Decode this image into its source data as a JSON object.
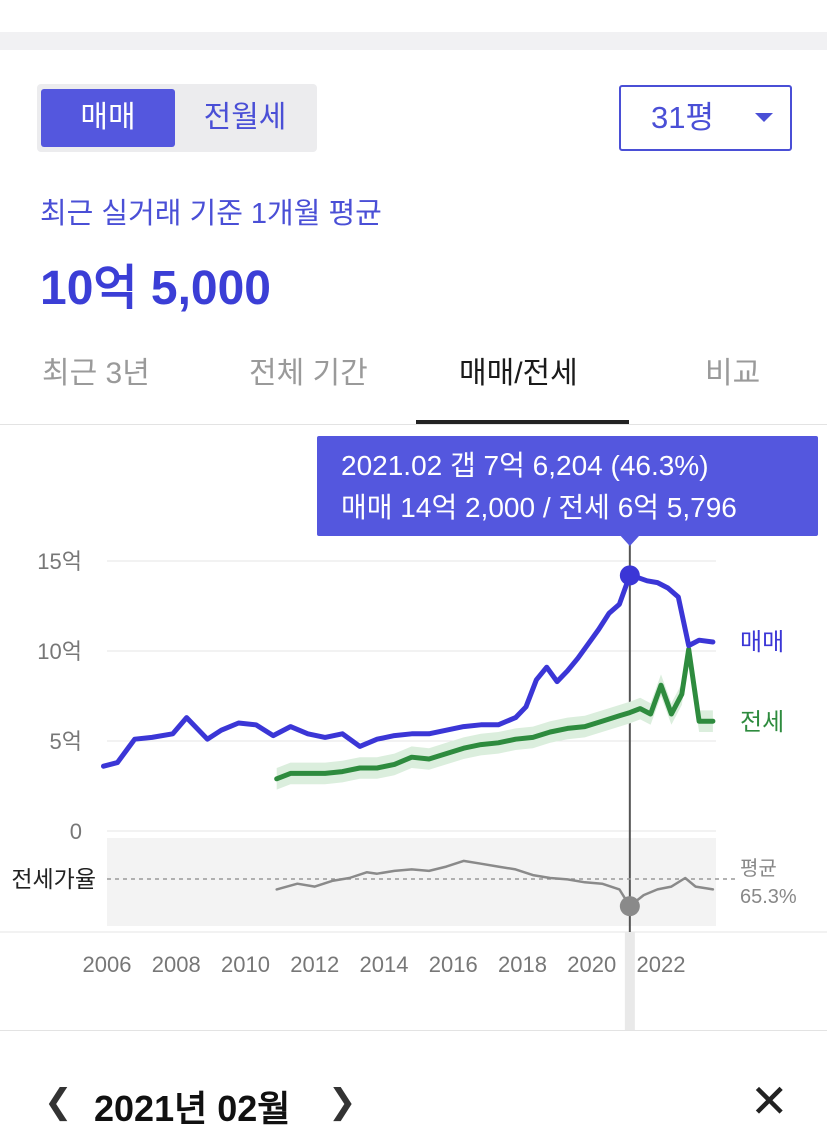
{
  "deal_toggle": {
    "active": "매매",
    "inactive": "전월세"
  },
  "size_select": {
    "value": "31평"
  },
  "summary": {
    "subtitle": "최근 실거래 기준 1개월 평균",
    "price": "10억 5,000"
  },
  "tabs": [
    {
      "label": "최근 3년",
      "active": false
    },
    {
      "label": "전체 기간",
      "active": false
    },
    {
      "label": "매매/전세",
      "active": true
    },
    {
      "label": "비교",
      "active": false
    }
  ],
  "tooltip": {
    "line1": "2021.02  갭 7억 6,204 (46.3%)",
    "line2": "매매 14억 2,000 / 전세 6억 5,796"
  },
  "date_nav": {
    "prev_icon": "chevron-left-icon",
    "label": "2021년 02월",
    "next_icon": "chevron-right-icon",
    "close_icon": "close-icon"
  },
  "colors": {
    "sale": "#3b36d6",
    "jeonse": "#2e8b3e",
    "ratio": "#8a8a8a",
    "accent": "#5457de"
  },
  "chart_data": {
    "type": "line",
    "x_ticks": [
      "2006",
      "2008",
      "2010",
      "2012",
      "2014",
      "2016",
      "2018",
      "2020",
      "2022"
    ],
    "y_ticks": [
      "15억",
      "10억",
      "5억",
      "0"
    ],
    "ylim": [
      0,
      15
    ],
    "y_unit": "억",
    "series": [
      {
        "name": "매매",
        "x": [
          2005.9,
          2006.3,
          2006.8,
          2007.3,
          2007.9,
          2008.3,
          2008.9,
          2009.3,
          2009.8,
          2010.3,
          2010.8,
          2011.3,
          2011.8,
          2012.3,
          2012.8,
          2013.3,
          2013.8,
          2014.3,
          2014.8,
          2015.3,
          2015.8,
          2016.3,
          2016.8,
          2017.3,
          2017.8,
          2018.1,
          2018.4,
          2018.7,
          2019.0,
          2019.3,
          2019.6,
          2019.9,
          2020.2,
          2020.5,
          2020.8,
          2021.1,
          2021.3,
          2021.6,
          2021.9,
          2022.2,
          2022.5,
          2022.8,
          2023.1,
          2023.5
        ],
        "y": [
          3.6,
          3.8,
          5.1,
          5.2,
          5.4,
          6.3,
          5.1,
          5.6,
          6.0,
          5.9,
          5.3,
          5.8,
          5.4,
          5.2,
          5.4,
          4.7,
          5.1,
          5.3,
          5.4,
          5.4,
          5.6,
          5.8,
          5.9,
          5.9,
          6.3,
          6.9,
          8.4,
          9.1,
          8.3,
          8.9,
          9.6,
          10.4,
          11.2,
          12.1,
          12.6,
          14.2,
          14.1,
          13.9,
          13.8,
          13.5,
          13.0,
          10.3,
          10.6,
          10.5
        ]
      },
      {
        "name": "전세",
        "x": [
          2010.9,
          2011.3,
          2011.8,
          2012.3,
          2012.8,
          2013.3,
          2013.8,
          2014.3,
          2014.8,
          2015.3,
          2015.8,
          2016.3,
          2016.8,
          2017.3,
          2017.8,
          2018.3,
          2018.8,
          2019.3,
          2019.8,
          2020.3,
          2020.8,
          2021.1,
          2021.4,
          2021.7,
          2022.0,
          2022.3,
          2022.6,
          2022.8,
          2023.1,
          2023.5
        ],
        "y": [
          2.9,
          3.2,
          3.2,
          3.2,
          3.3,
          3.5,
          3.5,
          3.7,
          4.1,
          4.0,
          4.3,
          4.6,
          4.8,
          4.9,
          5.1,
          5.2,
          5.5,
          5.7,
          5.8,
          6.1,
          6.4,
          6.58,
          6.8,
          6.5,
          8.1,
          6.5,
          7.6,
          10.1,
          6.1,
          6.1
        ]
      },
      {
        "name": "전세가율",
        "x": [
          2010.9,
          2011.5,
          2012.0,
          2012.5,
          2013.0,
          2013.5,
          2013.8,
          2014.3,
          2014.8,
          2015.3,
          2015.8,
          2016.3,
          2016.8,
          2017.3,
          2017.8,
          2018.3,
          2018.8,
          2019.3,
          2019.8,
          2020.3,
          2020.8,
          2021.1,
          2021.5,
          2021.9,
          2022.3,
          2022.7,
          2023.0,
          2023.5
        ],
        "y": [
          58,
          62,
          60,
          64,
          66,
          70,
          69,
          71,
          72,
          71,
          74,
          78,
          76,
          74,
          72,
          68,
          66,
          65,
          63,
          62,
          58,
          46.3,
          54,
          58,
          60,
          66,
          60,
          58
        ]
      }
    ],
    "ratio_average": {
      "label": "평균",
      "value": "65.3%"
    },
    "ratio_label": "전세가율",
    "selected": {
      "x": 2021.1,
      "label": "2021.02",
      "sale": 14.2,
      "jeonse": 6.58,
      "ratio": 46.3
    }
  }
}
